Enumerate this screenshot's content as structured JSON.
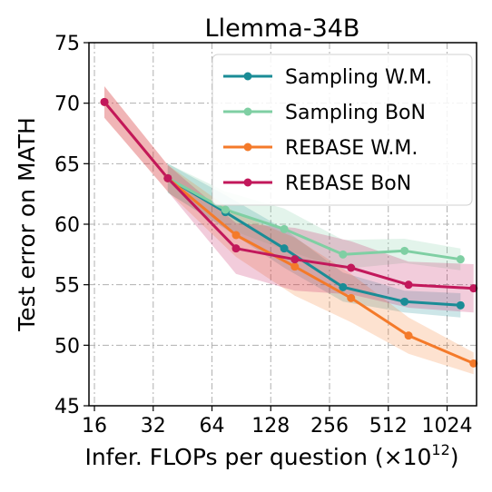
{
  "chart_data": {
    "type": "line",
    "title": "Llemma-34B",
    "xlabel": "Infer. FLOPs per question (×10",
    "xlabel_exponent": "12",
    "xlabel_close": ")",
    "ylabel": "Test error on MATH",
    "x_scale": "log2",
    "xlim": [
      15,
      1450
    ],
    "ylim": [
      45,
      75
    ],
    "x_ticks": [
      16,
      32,
      64,
      128,
      256,
      512,
      1024
    ],
    "x_tick_labels": [
      "16",
      "32",
      "64",
      "128",
      "256",
      "512",
      "1024"
    ],
    "y_ticks": [
      45,
      50,
      55,
      60,
      65,
      70,
      75
    ],
    "y_tick_labels": [
      "45",
      "50",
      "55",
      "60",
      "65",
      "70",
      "75"
    ],
    "grid": true,
    "legend_position": "top-right",
    "series": [
      {
        "name": "Sampling W.M.",
        "color": "#1a8c96",
        "x": [
          38,
          75,
          150,
          300,
          620,
          1200
        ],
        "y": [
          63.8,
          61.0,
          58.0,
          54.8,
          53.6,
          53.3
        ],
        "band": [
          [
            1.2,
            1.2
          ],
          [
            1.4,
            1.4
          ],
          [
            1.6,
            1.6
          ],
          [
            1.2,
            1.2
          ],
          [
            0.9,
            0.9
          ],
          [
            1.0,
            1.0
          ]
        ]
      },
      {
        "name": "Sampling BoN",
        "color": "#7fcfa3",
        "x": [
          38,
          75,
          150,
          300,
          620,
          1200
        ],
        "y": [
          63.8,
          61.2,
          59.6,
          57.5,
          57.8,
          57.1
        ],
        "band": [
          [
            1.2,
            1.2
          ],
          [
            1.5,
            1.5
          ],
          [
            1.7,
            1.7
          ],
          [
            1.2,
            1.2
          ],
          [
            1.0,
            1.0
          ],
          [
            0.9,
            0.9
          ]
        ]
      },
      {
        "name": "REBASE W.M.",
        "color": "#f47a2a",
        "x": [
          18,
          38,
          85,
          170,
          330,
          650,
          1400
        ],
        "y": [
          70.1,
          63.8,
          59.1,
          56.5,
          53.9,
          50.8,
          48.5
        ],
        "band": [
          [
            1.3,
            1.3
          ],
          [
            1.1,
            1.1
          ],
          [
            1.8,
            1.8
          ],
          [
            2.4,
            2.4
          ],
          [
            2.0,
            2.0
          ],
          [
            1.5,
            1.5
          ],
          [
            0.9,
            0.9
          ]
        ]
      },
      {
        "name": "REBASE BoN",
        "color": "#c2185b",
        "x": [
          18,
          38,
          85,
          170,
          330,
          650,
          1400
        ],
        "y": [
          70.1,
          63.8,
          58.0,
          57.1,
          56.4,
          55.0,
          54.7
        ],
        "band": [
          [
            1.3,
            1.3
          ],
          [
            1.1,
            1.1
          ],
          [
            2.1,
            2.1
          ],
          [
            2.6,
            2.6
          ],
          [
            2.2,
            2.2
          ],
          [
            1.9,
            1.9
          ],
          [
            2.0,
            2.0
          ]
        ]
      }
    ]
  }
}
